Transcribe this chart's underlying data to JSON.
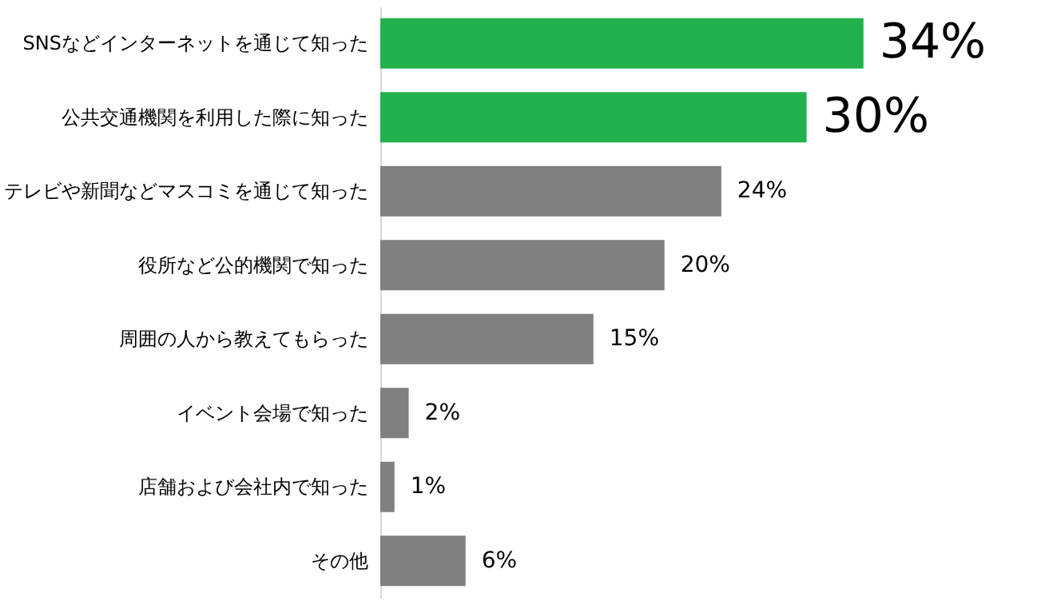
{
  "chart_data": {
    "type": "bar",
    "orientation": "horizontal",
    "categories": [
      "SNSなどインターネットを通じて知った",
      "公共交通機関を利用した際に知った",
      "テレビや新聞などマスコミを通じて知った",
      "役所など公的機関で知った",
      "周囲の人から教えてもらった",
      "イベント会場で知った",
      "店舗および会社内で知った",
      "その他"
    ],
    "values": [
      34,
      30,
      24,
      20,
      15,
      2,
      1,
      6
    ],
    "value_labels": [
      "34%",
      "30%",
      "24%",
      "20%",
      "15%",
      "2%",
      "1%",
      "6%"
    ],
    "colors": [
      "#22b14c",
      "#22b14c",
      "#808080",
      "#808080",
      "#808080",
      "#808080",
      "#808080",
      "#808080"
    ]
  }
}
